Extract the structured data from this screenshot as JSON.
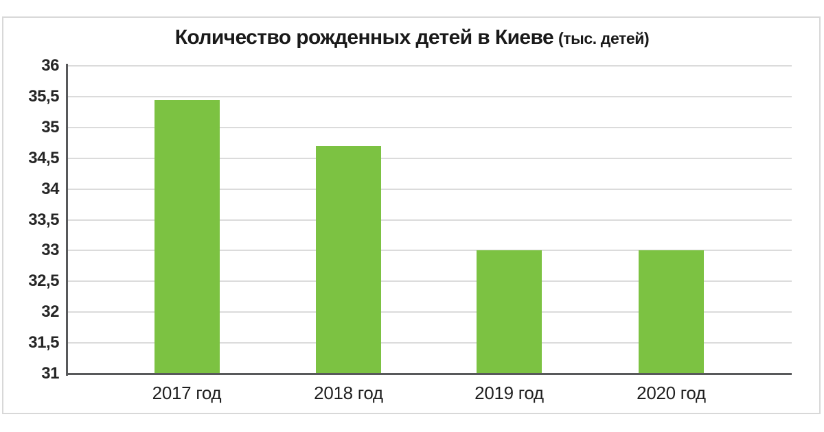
{
  "page": {
    "background_color": "#ffffff",
    "frame_border_color": "#d8d8d8"
  },
  "chart_data": {
    "type": "bar",
    "title": "Количество рожденных детей в Киеве",
    "title_suffix": "(тыс. детей)",
    "categories": [
      "2017 год",
      "2018 год",
      "2019 год",
      "2020 год"
    ],
    "values": [
      35.44,
      34.7,
      33,
      33
    ],
    "xlabel": "",
    "ylabel": "",
    "ylim": [
      31,
      36
    ],
    "ytick_step": 0.5,
    "yticks": [
      {
        "value": 36,
        "label": "36"
      },
      {
        "value": 35.5,
        "label": "35,5"
      },
      {
        "value": 35,
        "label": "35"
      },
      {
        "value": 34.5,
        "label": "34,5"
      },
      {
        "value": 34,
        "label": "34"
      },
      {
        "value": 33.5,
        "label": "33,5"
      },
      {
        "value": 33,
        "label": "33"
      },
      {
        "value": 32.5,
        "label": "32,5"
      },
      {
        "value": 32,
        "label": "32"
      },
      {
        "value": 31.5,
        "label": "31,5"
      },
      {
        "value": 31,
        "label": "31"
      }
    ],
    "grid": true,
    "legend": "none",
    "bar_color": "#7cc242",
    "gridline_color": "#dbdbdb",
    "axis_color": "#58595b",
    "title_color": "#1a1a1a",
    "tick_label_color": "#262626"
  }
}
